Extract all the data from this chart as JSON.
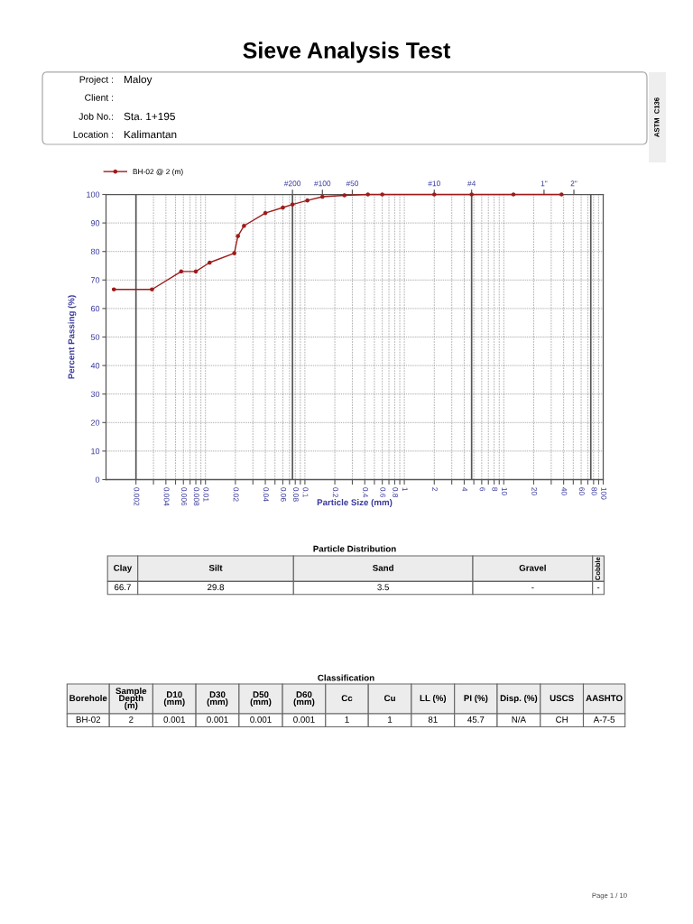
{
  "chart_data": {
    "type": "line",
    "title": "Sieve Analysis Test",
    "xlabel": "Particle Size (mm)",
    "ylabel": "Percent Passing (%)",
    "log": "x",
    "xlim": [
      0.001,
      100
    ],
    "xticks": [
      0.002,
      {
        "value": 0.003,
        "label": null
      },
      0.004,
      {
        "value": 0.005,
        "label": null
      },
      0.006,
      {
        "value": 0.007,
        "label": null
      },
      0.008,
      {
        "value": 0.009,
        "label": null
      },
      0.01,
      0.02,
      {
        "value": 0.03,
        "label": null
      },
      0.04,
      {
        "value": 0.05,
        "label": null
      },
      0.06,
      {
        "value": 0.07,
        "label": null
      },
      0.08,
      {
        "value": 0.09,
        "label": null
      },
      0.1,
      0.2,
      {
        "value": 0.3,
        "label": null
      },
      0.4,
      {
        "value": 0.5,
        "label": null
      },
      0.6,
      {
        "value": 0.7,
        "label": null
      },
      0.8,
      {
        "value": 0.9,
        "label": null
      },
      1,
      2,
      {
        "value": 3,
        "label": null
      },
      4,
      {
        "value": 5,
        "label": null
      },
      6,
      {
        "value": 7,
        "label": null
      },
      8,
      {
        "value": 9,
        "label": null
      },
      10,
      20,
      {
        "value": 30,
        "label": null
      },
      40,
      {
        "value": 50,
        "label": null
      },
      60,
      {
        "value": 70,
        "label": null
      },
      80,
      {
        "value": 90,
        "label": null
      },
      100
    ],
    "ylim": [
      0,
      100
    ],
    "yticks": [
      0,
      10,
      20,
      30,
      40,
      50,
      60,
      70,
      80,
      90,
      100
    ],
    "grid": true,
    "legend": "top left",
    "marker": "circle",
    "line_style": "solid",
    "series": [
      {
        "name": "BH-02 @ 2 (m)",
        "color": "#9e1b1b",
        "x": [
          0.0012,
          0.0029,
          0.0057,
          0.008,
          0.011,
          0.0195,
          0.0212,
          0.0244,
          0.04,
          0.06,
          0.075,
          0.106,
          0.15,
          0.25,
          0.43,
          0.6,
          2,
          4.75,
          12.5,
          38.1
        ],
        "values": [
          66.7,
          66.7,
          73,
          73,
          76.1,
          79.4,
          85.4,
          89,
          93.5,
          95.4,
          96.5,
          97.9,
          99.2,
          99.7,
          100,
          100,
          100,
          100,
          100,
          100
        ]
      }
    ],
    "ref_lines": [
      {
        "axis": "x",
        "value": 0.002,
        "color": "#555555"
      },
      {
        "axis": "x",
        "value": 0.075,
        "color": "#555555"
      },
      {
        "axis": "x",
        "value": 4.75,
        "color": "#555555"
      },
      {
        "axis": "x",
        "value": 75,
        "color": "#555555"
      }
    ],
    "annotations": [
      "Project :",
      "Maloy",
      "Client :",
      "Job No.:",
      "Sta. 1+195",
      "Location :",
      "Kalimantan",
      "ASTM  C136",
      "Particle Distribution",
      "Clay",
      "Silt",
      "Sand",
      "Gravel",
      "Cobble",
      "66.7",
      "29.8",
      "3.5",
      "-",
      "-",
      "Classification",
      "Borehole",
      "Sample\nDepth\n(m)",
      "D10\n(mm)",
      "D30\n(mm)",
      "D50\n(mm)",
      "D60\n(mm)",
      "Cc",
      "Cu",
      "LL (%)",
      "PI (%)",
      "Disp. (%)",
      "USCS",
      "AASHTO",
      "BH-02",
      "2",
      "0.001",
      "0.001",
      "0.001",
      "0.001",
      "1",
      "1",
      "81",
      "45.7",
      "N/A",
      "CH",
      "A-7-5",
      "Page 1 / 10",
      "2\"",
      {
        "text": "#200",
        "x": 0.075,
        "y": 100
      },
      {
        "text": "#100",
        "x": 0.15,
        "y": 100
      },
      {
        "text": "#50",
        "x": 0.3,
        "y": 100
      },
      {
        "text": "#10",
        "x": 2,
        "y": 100
      },
      {
        "text": "#4",
        "x": 4.75,
        "y": 100
      },
      {
        "text": "1\"",
        "x": 25.4,
        "y": 100
      }
    ]
  }
}
